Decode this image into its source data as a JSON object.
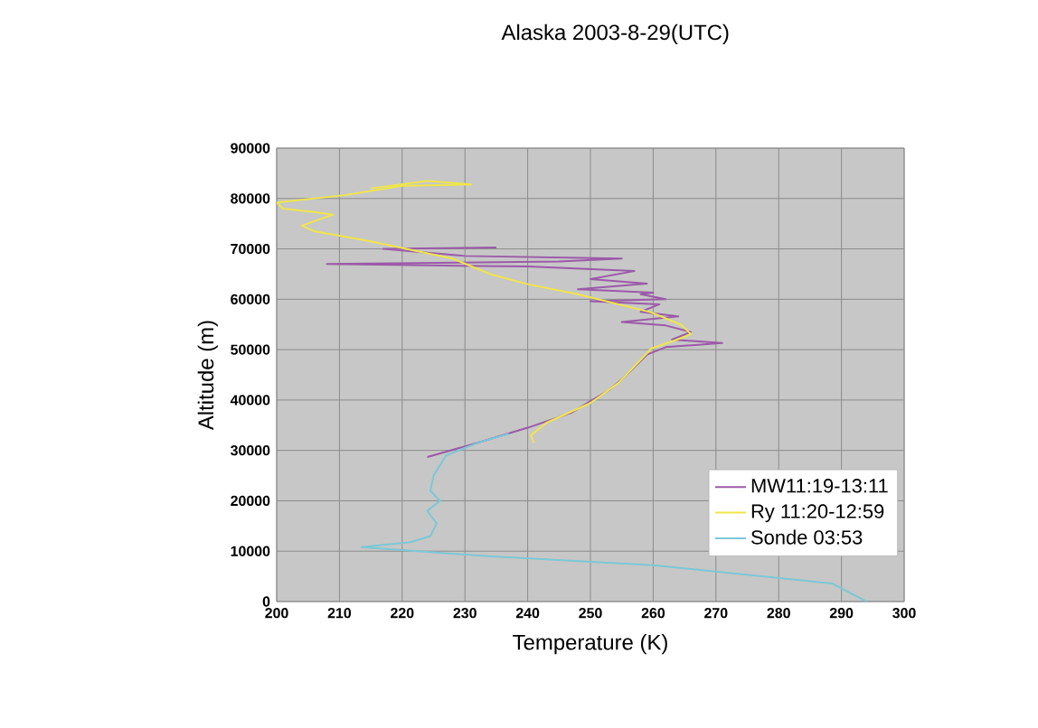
{
  "chart_data": {
    "type": "line",
    "title": "Alaska 2003-8-29(UTC)",
    "xlabel": "Temperature (K)",
    "ylabel": "Altitude (m)",
    "xlim": [
      200,
      300
    ],
    "ylim": [
      0,
      90000
    ],
    "xticks": [
      200,
      210,
      220,
      230,
      240,
      250,
      260,
      270,
      280,
      290,
      300
    ],
    "yticks": [
      0,
      10000,
      20000,
      30000,
      40000,
      50000,
      60000,
      70000,
      80000,
      90000
    ],
    "grid": true,
    "legend": "bottom right",
    "marker": "none",
    "line_style": "solid",
    "series": [
      {
        "name": "MW11:19-13:11",
        "color": "#9b5aa8",
        "x": [
          224,
          232,
          240,
          247,
          250,
          253,
          255,
          257,
          259,
          262,
          271,
          263,
          266,
          262,
          255,
          264,
          258,
          261,
          250,
          262,
          258,
          260,
          248,
          259,
          250,
          257,
          240,
          208,
          245,
          255,
          230,
          217,
          235
        ],
        "values": [
          28700,
          31500,
          34500,
          37500,
          39800,
          42000,
          44100,
          46500,
          49000,
          50500,
          51300,
          52000,
          53500,
          54800,
          55500,
          56600,
          57500,
          59000,
          59600,
          60000,
          61000,
          61300,
          62000,
          63100,
          64000,
          65600,
          66500,
          67000,
          67500,
          68100,
          68600,
          70000,
          70300
        ]
      },
      {
        "name": "Ry 11:20-12:59",
        "color": "#f0e64a",
        "x": [
          241,
          240.5,
          243,
          250,
          254.5,
          259.7,
          264.5,
          266,
          264.5,
          259.7,
          248,
          240,
          234,
          228,
          215,
          206,
          204,
          209,
          206,
          201,
          200,
          211,
          220,
          231,
          224,
          215
        ],
        "values": [
          31500,
          33000,
          35500,
          39400,
          43400,
          50200,
          52300,
          53100,
          54900,
          57400,
          61000,
          63000,
          65000,
          68100,
          71500,
          73500,
          74600,
          76800,
          77300,
          78000,
          79200,
          80700,
          82500,
          82800,
          83500,
          82000
        ]
      },
      {
        "name": "Sonde 03:53",
        "color": "#7cc8d6",
        "x": [
          294,
          288.5,
          260,
          233.7,
          213.5,
          221.3,
          224.5,
          225.5,
          224,
          226,
          224.5,
          225,
          227,
          232,
          237
        ],
        "values": [
          0,
          3600,
          7200,
          9000,
          10800,
          11800,
          13000,
          15500,
          18000,
          20000,
          22000,
          25000,
          29000,
          31500,
          33300
        ]
      }
    ]
  }
}
